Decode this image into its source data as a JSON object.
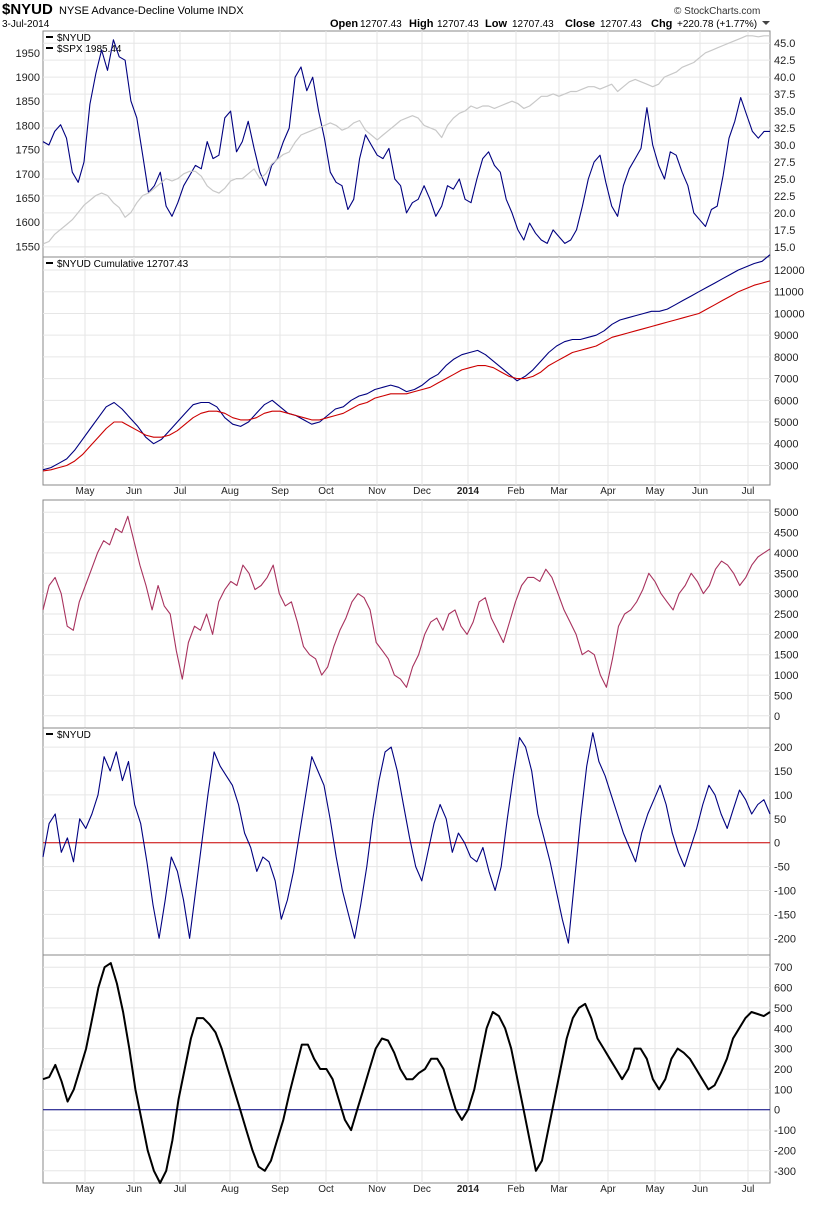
{
  "header": {
    "symbol": "$NYUD",
    "name": "NYSE Advance-Decline Volume INDX",
    "date": "3-Jul-2014",
    "open_label": "Open",
    "open": "12707.43",
    "high_label": "High",
    "high": "12707.43",
    "low_label": "Low",
    "low": "12707.43",
    "close_label": "Close",
    "close": "12707.43",
    "chg_label": "Chg",
    "chg": "+220.78 (+1.77%)",
    "watermark": "© StockCharts.com"
  },
  "colors": {
    "navy": "#000080",
    "gray": "#c8c8c8",
    "red": "#cc0000",
    "maroon": "#a8325e",
    "black": "#000000",
    "grid": "#e6e6e6"
  },
  "x_axis": {
    "labels": [
      "May",
      "Jun",
      "Jul",
      "Aug",
      "Sep",
      "Oct",
      "Nov",
      "Dec",
      "2014",
      "Feb",
      "Mar",
      "Apr",
      "May",
      "Jun",
      "Jul"
    ]
  },
  "chart_data": [
    {
      "type": "line",
      "panel": "price",
      "legend": [
        "$NYUD",
        "$SPX 1985.44"
      ],
      "left_axis": {
        "ticks": [
          1550,
          1600,
          1650,
          1700,
          1750,
          1800,
          1850,
          1900,
          1950
        ],
        "range": [
          1528,
          1995
        ]
      },
      "right_axis": {
        "ticks": [
          15.0,
          17.5,
          20.0,
          22.5,
          25.0,
          27.5,
          30.0,
          32.5,
          35.0,
          37.5,
          40.0,
          42.5,
          45.0
        ],
        "labels": [
          "15.0",
          "17.5",
          "20.0",
          "22.5",
          "25.0",
          "27.5",
          "30.0",
          "32.5",
          "35.0",
          "37.5",
          "40.0",
          "42.5",
          "45.0"
        ],
        "range": [
          13.5,
          46.8
        ]
      },
      "series": [
        {
          "name": "$NYUD",
          "color": "navy",
          "axis": "right",
          "values": [
            30.5,
            30.0,
            32.0,
            33.0,
            31.0,
            26.0,
            24.5,
            27.5,
            36.0,
            40.5,
            44.0,
            41.0,
            45.5,
            43.0,
            42.5,
            36.5,
            34.0,
            28.5,
            23.0,
            24.0,
            26.0,
            21.0,
            19.5,
            21.5,
            24.0,
            25.5,
            27.0,
            26.5,
            30.5,
            28.0,
            28.5,
            34.0,
            35.0,
            29.0,
            30.5,
            33.5,
            29.5,
            26.0,
            24.0,
            27.0,
            28.0,
            30.5,
            32.5,
            40.0,
            41.5,
            38.0,
            40.0,
            35.0,
            31.0,
            26.0,
            24.5,
            24.0,
            20.5,
            22.0,
            28.0,
            31.5,
            30.0,
            28.5,
            28.0,
            29.5,
            25.0,
            24.0,
            20.0,
            21.5,
            22.0,
            24.0,
            22.0,
            19.5,
            21.0,
            24.0,
            23.5,
            25.0,
            22.0,
            21.5,
            25.0,
            28.0,
            29.0,
            27.0,
            26.0,
            22.0,
            20.0,
            17.5,
            16.0,
            18.5,
            17.0,
            16.0,
            15.5,
            17.5,
            16.5,
            15.5,
            16.0,
            17.5,
            21.0,
            25.0,
            27.5,
            28.5,
            24.5,
            21.0,
            19.5,
            24.0,
            26.5,
            28.0,
            29.5,
            35.5,
            30.0,
            27.0,
            25.0,
            29.0,
            28.5,
            26.0,
            24.0,
            20.0,
            19.0,
            18.0,
            20.5,
            21.0,
            25.5,
            31.0,
            33.5,
            37.0,
            34.5,
            32.0,
            31.0,
            32.0,
            32.0
          ]
        },
        {
          "name": "$SPX 1985.44",
          "color": "gray",
          "axis": "left",
          "values": [
            1555,
            1560,
            1575,
            1585,
            1595,
            1605,
            1620,
            1635,
            1645,
            1655,
            1660,
            1655,
            1640,
            1630,
            1610,
            1620,
            1640,
            1655,
            1660,
            1670,
            1680,
            1690,
            1685,
            1690,
            1700,
            1705,
            1705,
            1695,
            1675,
            1665,
            1660,
            1670,
            1685,
            1690,
            1690,
            1700,
            1710,
            1690,
            1700,
            1720,
            1730,
            1740,
            1745,
            1765,
            1780,
            1785,
            1790,
            1795,
            1800,
            1805,
            1800,
            1790,
            1795,
            1805,
            1810,
            1790,
            1780,
            1770,
            1780,
            1790,
            1800,
            1810,
            1815,
            1820,
            1815,
            1800,
            1795,
            1790,
            1775,
            1800,
            1815,
            1825,
            1830,
            1840,
            1835,
            1840,
            1840,
            1835,
            1840,
            1845,
            1850,
            1845,
            1835,
            1840,
            1850,
            1860,
            1860,
            1865,
            1860,
            1865,
            1870,
            1870,
            1875,
            1880,
            1880,
            1875,
            1880,
            1885,
            1870,
            1880,
            1890,
            1895,
            1890,
            1885,
            1880,
            1885,
            1900,
            1905,
            1910,
            1920,
            1925,
            1930,
            1940,
            1950,
            1955,
            1960,
            1965,
            1970,
            1975,
            1980,
            1985,
            1985,
            1983,
            1985,
            1985
          ]
        }
      ]
    },
    {
      "type": "line",
      "panel": "cumulative",
      "legend": [
        "$NYUD Cumulative 12707.43"
      ],
      "right_axis": {
        "ticks": [
          3000,
          4000,
          5000,
          6000,
          7000,
          8000,
          9000,
          10000,
          11000,
          12000
        ],
        "range": [
          2100,
          12600
        ]
      },
      "series": [
        {
          "name": "$NYUD Cumulative 12707.43",
          "color": "navy",
          "values": [
            2800,
            2900,
            3100,
            3300,
            3700,
            4200,
            4700,
            5200,
            5700,
            5900,
            5600,
            5200,
            4800,
            4300,
            4000,
            4200,
            4600,
            5000,
            5400,
            5800,
            5900,
            5900,
            5700,
            5200,
            4900,
            4800,
            5000,
            5400,
            5800,
            6000,
            5700,
            5400,
            5300,
            5100,
            4900,
            5000,
            5300,
            5600,
            5700,
            6000,
            6200,
            6300,
            6500,
            6600,
            6700,
            6600,
            6400,
            6500,
            6700,
            7000,
            7200,
            7600,
            7900,
            8100,
            8200,
            8300,
            8100,
            7800,
            7500,
            7200,
            6900,
            7100,
            7400,
            7800,
            8200,
            8500,
            8700,
            8800,
            8800,
            8900,
            9000,
            9200,
            9500,
            9700,
            9800,
            9900,
            10000,
            10100,
            10100,
            10200,
            10400,
            10600,
            10800,
            11000,
            11200,
            11400,
            11600,
            11800,
            12000,
            12150,
            12300,
            12400,
            12707
          ]
        },
        {
          "name": "MA",
          "color": "red",
          "values": [
            2750,
            2800,
            2900,
            3000,
            3200,
            3500,
            3900,
            4300,
            4700,
            5000,
            5000,
            4800,
            4600,
            4400,
            4300,
            4300,
            4400,
            4600,
            4900,
            5200,
            5400,
            5500,
            5500,
            5400,
            5200,
            5100,
            5100,
            5200,
            5400,
            5500,
            5500,
            5400,
            5300,
            5200,
            5100,
            5100,
            5200,
            5300,
            5400,
            5600,
            5800,
            5900,
            6100,
            6200,
            6300,
            6300,
            6300,
            6400,
            6500,
            6600,
            6800,
            7000,
            7200,
            7400,
            7500,
            7600,
            7600,
            7500,
            7300,
            7100,
            7000,
            7000,
            7100,
            7300,
            7600,
            7800,
            8000,
            8200,
            8300,
            8400,
            8500,
            8700,
            8900,
            9000,
            9100,
            9200,
            9300,
            9400,
            9500,
            9600,
            9700,
            9800,
            9900,
            10000,
            10200,
            10400,
            10600,
            10800,
            11000,
            11150,
            11300,
            11400,
            11500
          ]
        }
      ]
    },
    {
      "type": "line",
      "panel": "osc1",
      "right_axis": {
        "ticks": [
          0,
          500,
          1000,
          1500,
          2000,
          2500,
          3000,
          3500,
          4000,
          4500,
          5000
        ],
        "range": [
          -300,
          5300
        ]
      },
      "series": [
        {
          "name": "",
          "color": "maroon",
          "values": [
            2600,
            3200,
            3400,
            3000,
            2200,
            2100,
            2800,
            3200,
            3600,
            4000,
            4300,
            4200,
            4600,
            4500,
            4900,
            4300,
            3700,
            3200,
            2600,
            3200,
            2700,
            2500,
            1600,
            900,
            1800,
            2200,
            2100,
            2500,
            2000,
            2800,
            3100,
            3300,
            3200,
            3700,
            3500,
            3100,
            3200,
            3400,
            3700,
            3000,
            2700,
            2800,
            2300,
            1700,
            1500,
            1400,
            1000,
            1200,
            1700,
            2100,
            2400,
            2800,
            3000,
            2900,
            2600,
            1800,
            1600,
            1400,
            1000,
            900,
            700,
            1200,
            1500,
            2000,
            2300,
            2400,
            2100,
            2500,
            2600,
            2200,
            2000,
            2300,
            2800,
            2900,
            2400,
            2100,
            1800,
            2300,
            2800,
            3200,
            3400,
            3400,
            3300,
            3600,
            3400,
            3000,
            2600,
            2300,
            2000,
            1500,
            1600,
            1500,
            1000,
            700,
            1400,
            2200,
            2500,
            2600,
            2800,
            3100,
            3500,
            3300,
            3000,
            2800,
            2600,
            3000,
            3200,
            3500,
            3300,
            3000,
            3200,
            3600,
            3800,
            3700,
            3500,
            3200,
            3400,
            3700,
            3900,
            4000,
            4100
          ]
        }
      ]
    },
    {
      "type": "line",
      "panel": "osc2",
      "legend": [
        "$NYUD"
      ],
      "right_axis": {
        "ticks": [
          -200,
          -150,
          -100,
          -50,
          0,
          50,
          100,
          150,
          200
        ],
        "range": [
          -235,
          240
        ]
      },
      "series": [
        {
          "name": "$NYUD",
          "color": "navy",
          "values": [
            -30,
            40,
            60,
            -20,
            10,
            -40,
            50,
            30,
            60,
            100,
            180,
            150,
            190,
            130,
            170,
            80,
            40,
            -40,
            -130,
            -200,
            -120,
            -30,
            -60,
            -120,
            -200,
            -100,
            0,
            100,
            190,
            160,
            140,
            120,
            80,
            20,
            -10,
            -60,
            -30,
            -40,
            -80,
            -160,
            -120,
            -60,
            20,
            100,
            180,
            150,
            120,
            50,
            -30,
            -100,
            -150,
            -200,
            -130,
            -50,
            50,
            130,
            190,
            200,
            150,
            80,
            10,
            -50,
            -80,
            -20,
            40,
            80,
            50,
            -20,
            20,
            0,
            -30,
            -40,
            -10,
            -60,
            -100,
            -50,
            50,
            140,
            220,
            200,
            150,
            60,
            10,
            -40,
            -100,
            -160,
            -210,
            -80,
            50,
            160,
            230,
            170,
            140,
            100,
            60,
            20,
            -10,
            -40,
            20,
            60,
            90,
            120,
            80,
            20,
            -20,
            -50,
            -10,
            30,
            80,
            120,
            100,
            60,
            30,
            70,
            110,
            90,
            60,
            80,
            90,
            60
          ]
        },
        {
          "name": "zero-line",
          "color": "red",
          "values": []
        }
      ]
    },
    {
      "type": "line",
      "panel": "osc3",
      "right_axis": {
        "ticks": [
          -300,
          -200,
          -100,
          0,
          100,
          200,
          300,
          400,
          500,
          600,
          700
        ],
        "range": [
          -360,
          760
        ]
      },
      "series": [
        {
          "name": "",
          "color": "black",
          "values": [
            150,
            160,
            220,
            140,
            40,
            100,
            200,
            300,
            450,
            600,
            700,
            720,
            620,
            480,
            300,
            100,
            -50,
            -200,
            -300,
            -360,
            -300,
            -150,
            50,
            200,
            350,
            450,
            450,
            420,
            380,
            300,
            200,
            100,
            0,
            -100,
            -200,
            -280,
            -300,
            -250,
            -150,
            -50,
            80,
            200,
            320,
            320,
            250,
            200,
            200,
            150,
            50,
            -50,
            -100,
            0,
            100,
            200,
            300,
            350,
            340,
            280,
            200,
            150,
            150,
            180,
            200,
            250,
            250,
            200,
            100,
            0,
            -50,
            0,
            100,
            250,
            400,
            480,
            460,
            400,
            300,
            150,
            0,
            -150,
            -300,
            -250,
            -100,
            50,
            200,
            350,
            450,
            500,
            520,
            450,
            350,
            300,
            250,
            200,
            150,
            200,
            300,
            300,
            250,
            150,
            100,
            150,
            250,
            300,
            280,
            250,
            200,
            150,
            100,
            120,
            180,
            250,
            350,
            400,
            450,
            480,
            470,
            460,
            480
          ]
        },
        {
          "name": "zero-line",
          "color": "navy",
          "values": []
        }
      ]
    }
  ]
}
